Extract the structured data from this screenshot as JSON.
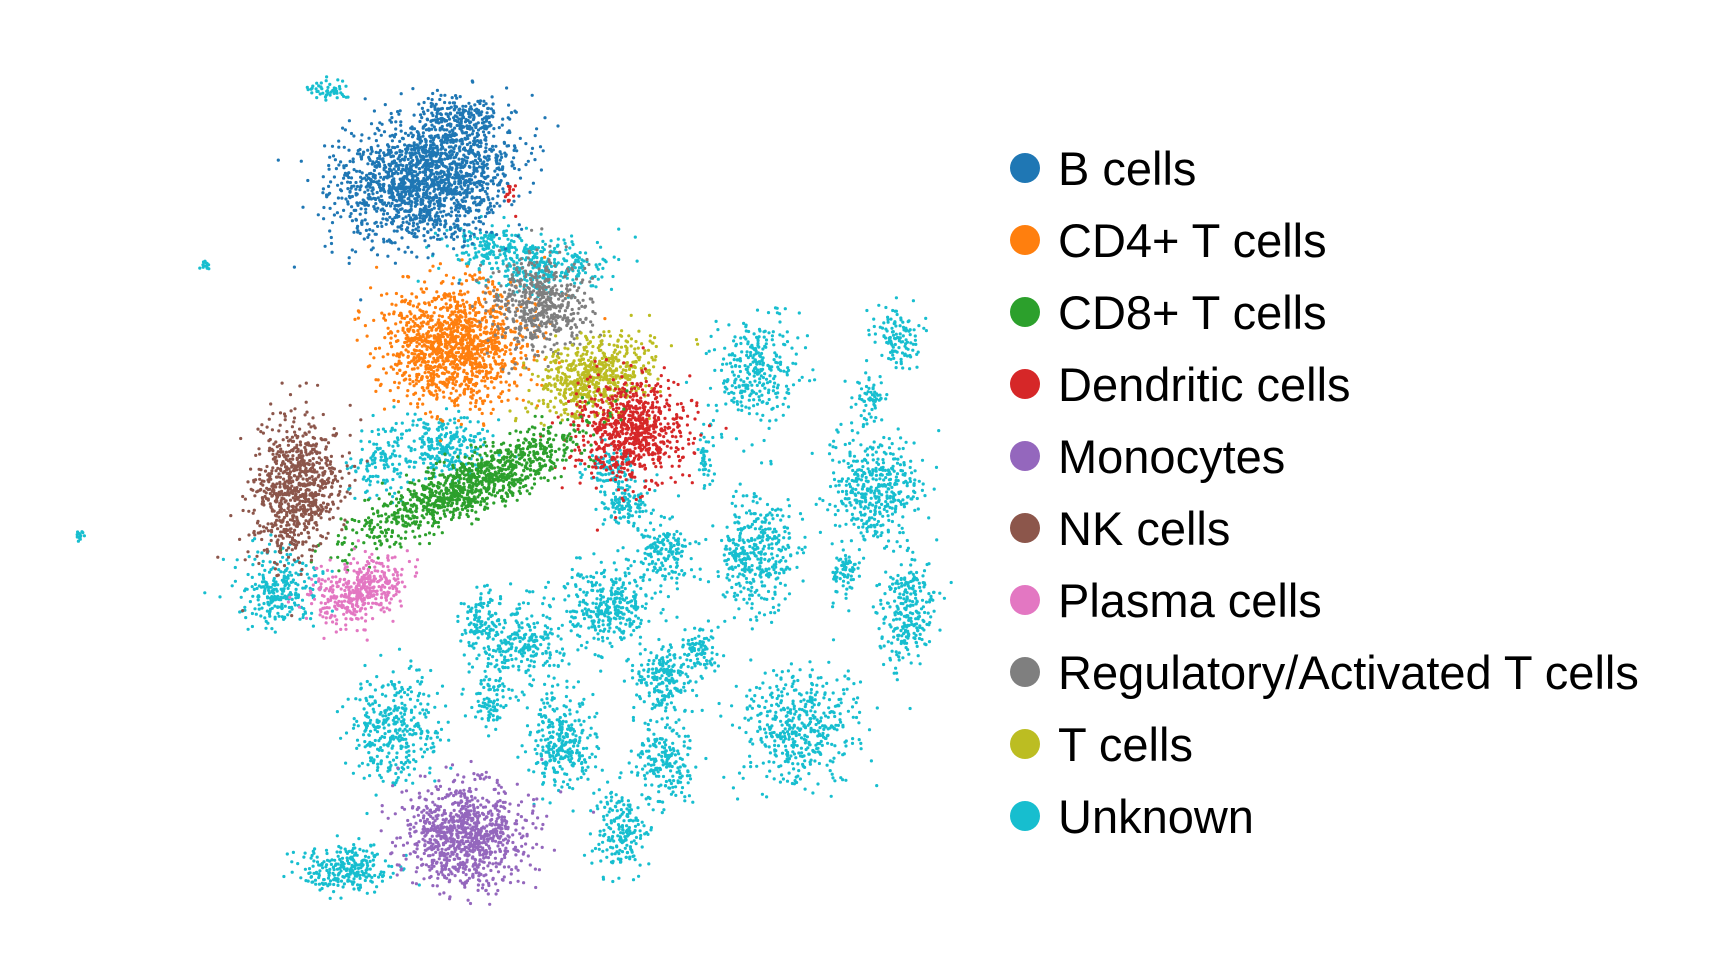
{
  "chart_data": {
    "type": "scatter",
    "title": "",
    "xlabel": "",
    "ylabel": "",
    "axes_visible": false,
    "grid": false,
    "legend_position": "right",
    "series": [
      {
        "name": "B cells",
        "color": "#1f77b4"
      },
      {
        "name": "CD4+ T cells",
        "color": "#ff7f0e"
      },
      {
        "name": "CD8+ T cells",
        "color": "#2ca02c"
      },
      {
        "name": "Dendritic cells",
        "color": "#d62728"
      },
      {
        "name": "Monocytes",
        "color": "#9467bd"
      },
      {
        "name": "NK cells",
        "color": "#8c564b"
      },
      {
        "name": "Plasma cells",
        "color": "#e377c2"
      },
      {
        "name": "Regulatory/Activated T cells",
        "color": "#7f7f7f"
      },
      {
        "name": "T cells",
        "color": "#bcbd22"
      },
      {
        "name": "Unknown",
        "color": "#17becf"
      }
    ]
  }
}
